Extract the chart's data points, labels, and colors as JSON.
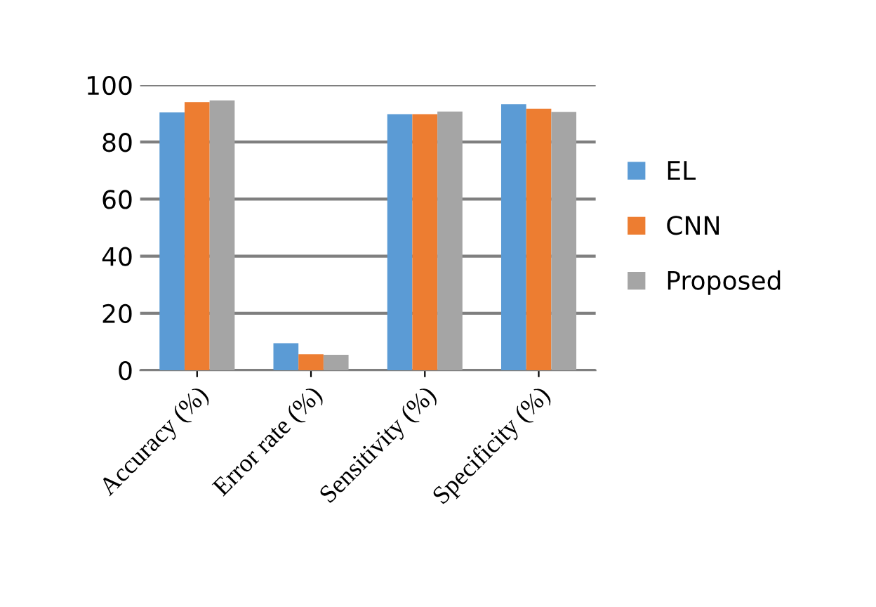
{
  "chart_data": {
    "type": "bar",
    "categories": [
      "Accuracy (%)",
      "Error rate (%)",
      "Sensitivity (%)",
      "Specificity (%)"
    ],
    "series": [
      {
        "name": "EL",
        "color": "#5b9bd5",
        "values": [
          90.4,
          9.5,
          89.8,
          93.3
        ]
      },
      {
        "name": "CNN",
        "color": "#ed7d31",
        "values": [
          94,
          5.6,
          89.8,
          91.7
        ]
      },
      {
        "name": "Proposed",
        "color": "#a5a5a5",
        "values": [
          94.6,
          5.4,
          90.7,
          90.6
        ]
      }
    ],
    "ylim": [
      0,
      100
    ],
    "yticks": [
      0,
      20,
      40,
      60,
      80,
      100
    ],
    "grid": "y",
    "legend": "right"
  }
}
